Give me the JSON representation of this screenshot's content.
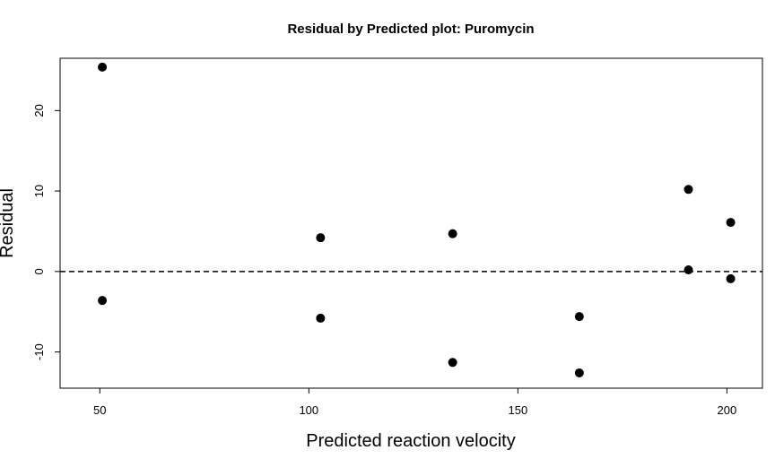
{
  "chart_data": {
    "type": "scatter",
    "title": "Residual by Predicted plot: Puromycin",
    "xlabel": "Predicted reaction velocity",
    "ylabel": "Residual",
    "xlim": [
      40.5,
      208.5
    ],
    "ylim": [
      -14.5,
      26.5
    ],
    "x_ticks": [
      50,
      100,
      150,
      200
    ],
    "y_ticks": [
      -10,
      0,
      10,
      20
    ],
    "reference_line": {
      "y": 0,
      "style": "dashed"
    },
    "grid": false,
    "legend": "none",
    "point_color": "#000000",
    "points": [
      {
        "x": 50.6,
        "y": 25.4
      },
      {
        "x": 50.6,
        "y": -3.6
      },
      {
        "x": 102.8,
        "y": 4.2
      },
      {
        "x": 102.8,
        "y": -5.8
      },
      {
        "x": 134.4,
        "y": 4.7
      },
      {
        "x": 134.4,
        "y": -11.3
      },
      {
        "x": 164.7,
        "y": -5.6
      },
      {
        "x": 164.7,
        "y": -12.6
      },
      {
        "x": 190.8,
        "y": 10.2
      },
      {
        "x": 190.8,
        "y": 0.2
      },
      {
        "x": 200.9,
        "y": 6.1
      },
      {
        "x": 200.9,
        "y": -0.9
      }
    ]
  }
}
